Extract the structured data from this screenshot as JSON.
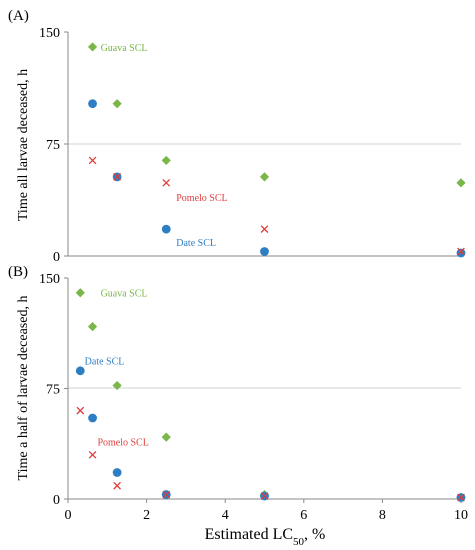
{
  "colors": {
    "guava": "#7ab648",
    "date": "#2e7ec3",
    "pomelo": "#e03c3c",
    "gridline": "#d0d0d0",
    "axis": "#8a8a8a",
    "text": "#000000"
  },
  "chart_data": [
    {
      "type": "scatter",
      "panel_label": "(A)",
      "ylabel": "Time all larvae deceased,  h",
      "xlim": [
        0,
        10
      ],
      "ylim": [
        0,
        150
      ],
      "yticks": [
        0,
        75,
        150
      ],
      "grid": "horizontal at 75",
      "series": [
        {
          "name": "Guava SCL",
          "marker": "diamond",
          "color": "#7ab648",
          "x": [
            0.625,
            1.25,
            2.5,
            5,
            10
          ],
          "y": [
            140,
            102,
            64,
            53,
            49
          ]
        },
        {
          "name": "Date SCL",
          "marker": "circle",
          "color": "#2e7ec3",
          "x": [
            0.625,
            1.25,
            2.5,
            5,
            10
          ],
          "y": [
            102,
            53,
            18,
            3,
            2
          ]
        },
        {
          "name": "Pomelo SCL",
          "marker": "x",
          "color": "#e03c3c",
          "x": [
            0.625,
            1.25,
            2.5,
            5,
            10
          ],
          "y": [
            64,
            53,
            49,
            18,
            3
          ]
        }
      ],
      "annotations": [
        {
          "text": "Guava SCL",
          "series": "Guava SCL",
          "x": 0.625,
          "y": 140
        },
        {
          "text": "Pomelo SCL",
          "series": "Pomelo SCL",
          "x": 2.5,
          "y": 49
        },
        {
          "text": "Date SCL",
          "series": "Date SCL",
          "x": 2.5,
          "y": 18
        }
      ]
    },
    {
      "type": "scatter",
      "panel_label": "(B)",
      "ylabel": "Time a half of larvae deceased,  h",
      "xlabel": "Estimated LC50, %",
      "xlabel_main": "Estimated LC",
      "xlabel_sub": "50",
      "xlabel_tail": ", %",
      "xlim": [
        0,
        10
      ],
      "ylim": [
        0,
        150
      ],
      "xticks": [
        0,
        2,
        4,
        6,
        8,
        10
      ],
      "yticks": [
        0,
        75,
        150
      ],
      "grid": "horizontal at 75",
      "series": [
        {
          "name": "Guava SCL",
          "marker": "diamond",
          "color": "#7ab648",
          "x": [
            0.3125,
            0.625,
            1.25,
            2.5,
            5,
            10
          ],
          "y": [
            140,
            117,
            77,
            42,
            3,
            1
          ]
        },
        {
          "name": "Date SCL",
          "marker": "circle",
          "color": "#2e7ec3",
          "x": [
            0.3125,
            0.625,
            1.25,
            2.5,
            5,
            10
          ],
          "y": [
            87,
            55,
            18,
            3,
            2,
            1
          ]
        },
        {
          "name": "Pomelo SCL",
          "marker": "x",
          "color": "#e03c3c",
          "x": [
            0.3125,
            0.625,
            1.25,
            2.5,
            5,
            10
          ],
          "y": [
            60,
            30,
            9,
            3,
            2,
            1
          ]
        }
      ],
      "annotations": [
        {
          "text": "Guava SCL",
          "series": "Guava SCL",
          "x": 0.625,
          "y": 140
        },
        {
          "text": "Date SCL",
          "series": "Date SCL",
          "x": 0.5,
          "y": 94
        },
        {
          "text": "Pomelo SCL",
          "series": "Pomelo SCL",
          "x": 0.8,
          "y": 39
        }
      ]
    }
  ]
}
